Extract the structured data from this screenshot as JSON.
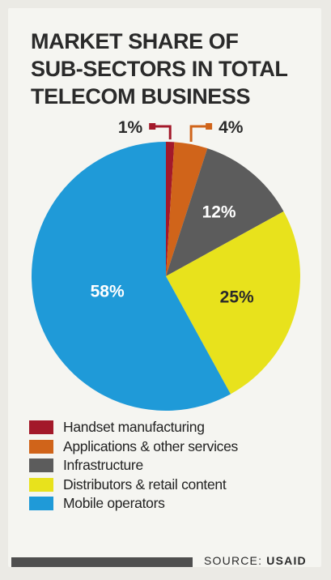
{
  "title_lines": [
    "MARKET SHARE OF",
    "SUB-SECTORS IN TOTAL",
    "TELECOM BUSINESS"
  ],
  "source": {
    "prefix": "SOURCE:",
    "name": "USAID"
  },
  "chart_data": {
    "type": "pie",
    "title": "MARKET SHARE OF SUB-SECTORS IN TOTAL TELECOM BUSINESS",
    "legend_placement": "bottom",
    "slices": [
      {
        "label": "Handset manufacturing",
        "value": 1,
        "value_label": "1%",
        "color": "#a3192a"
      },
      {
        "label": "Applications & other services",
        "value": 4,
        "value_label": "4%",
        "color": "#d0641a"
      },
      {
        "label": "Infrastructure",
        "value": 12,
        "value_label": "12%",
        "color": "#5c5c5c"
      },
      {
        "label": "Distributors & retail content",
        "value": 25,
        "value_label": "25%",
        "color": "#e8e21c"
      },
      {
        "label": "Mobile operators",
        "value": 58,
        "value_label": "58%",
        "color": "#1f9ad8"
      }
    ]
  }
}
